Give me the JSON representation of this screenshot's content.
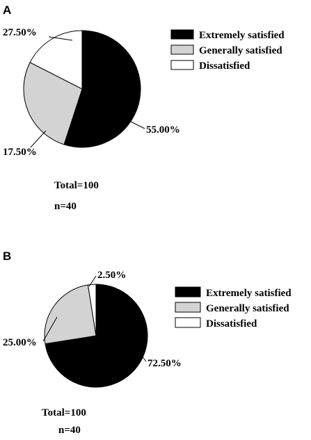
{
  "chart_data": [
    {
      "type": "pie",
      "panel_label": "A",
      "categories": [
        "Extremely satisfied",
        "Generally satisfied",
        "Dissatisfied"
      ],
      "values": [
        55.0,
        27.5,
        17.5
      ],
      "labels": [
        "55.00%",
        "27.50%",
        "17.50%"
      ],
      "colors": [
        "#000000",
        "#d3d3d3",
        "#ffffff"
      ],
      "legend": "right",
      "notes": [
        "Total=100",
        "n=40"
      ]
    },
    {
      "type": "pie",
      "panel_label": "B",
      "categories": [
        "Extremely satisfied",
        "Generally satisfied",
        "Dissatisfied"
      ],
      "values": [
        72.5,
        25.0,
        2.5
      ],
      "labels": [
        "72.50%",
        "25.00%",
        "2.50%"
      ],
      "colors": [
        "#000000",
        "#d3d3d3",
        "#ffffff"
      ],
      "legend": "right",
      "notes": [
        "Total=100",
        "n=40"
      ]
    }
  ]
}
